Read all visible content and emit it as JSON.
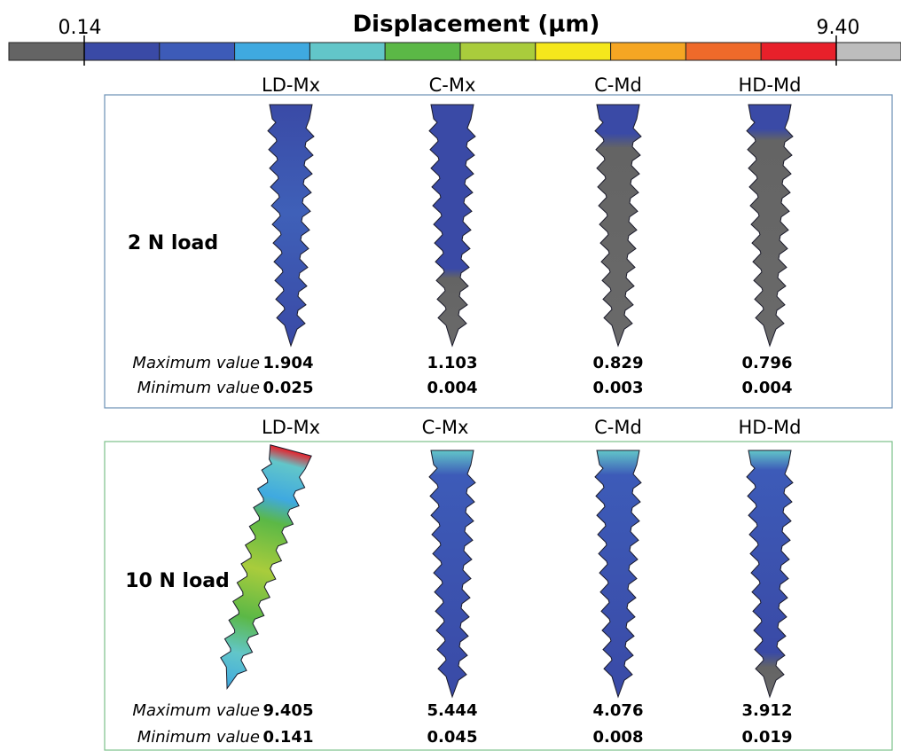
{
  "colorbar": {
    "title": "Displacement (µm)",
    "min_label": "0.14",
    "max_label": "9.40",
    "colors": [
      "#646464",
      "#3a4aa6",
      "#3d5bb8",
      "#3fa9e0",
      "#62c6c9",
      "#5bb846",
      "#a9cc3c",
      "#f5e71c",
      "#f5a623",
      "#ef6a2a",
      "#e8202a",
      "#bdbdbd"
    ]
  },
  "panels": [
    {
      "label": "2 N load",
      "columns": [
        "LD-Mx",
        "C-Mx",
        "C-Md",
        "HD-Md"
      ],
      "max_label": "Maximum value",
      "min_label": "Minimum value",
      "max_values": [
        "1.904",
        "1.103",
        "0.829",
        "0.796"
      ],
      "min_values": [
        "0.025",
        "0.004",
        "0.003",
        "0.004"
      ]
    },
    {
      "label": "10 N load",
      "columns": [
        "LD-Mx",
        "C-Mx",
        "C-Md",
        "HD-Md"
      ],
      "max_label": "Maximum value",
      "min_label": "Minimum value",
      "max_values": [
        "9.405",
        "5.444",
        "4.076",
        "3.912"
      ],
      "min_values": [
        "0.141",
        "0.045",
        "0.008",
        "0.019"
      ]
    }
  ]
}
